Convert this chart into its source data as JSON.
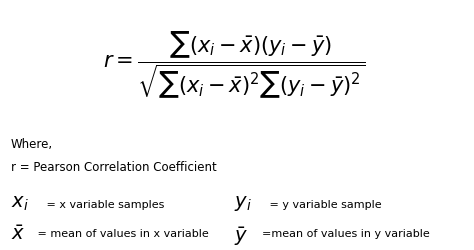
{
  "bg_color": "#ffffff",
  "text_color": "#000000",
  "fig_width": 4.74,
  "fig_height": 2.51,
  "formula_main": "$r = \\dfrac{\\sum (x_i - \\bar{x})(y_i - \\bar{y})}{\\sqrt{\\sum (x_i - \\bar{x})^2 \\sum (y_i - \\bar{y})^2}}$",
  "where_text": "Where,",
  "r_def": "r = Pearson Correlation Coefficient",
  "xi_formula": "$\\mathit{x}_i$",
  "xi_desc": " = x variable samples",
  "yi_formula": "$\\mathit{y}_i$",
  "yi_desc": " = y variable sample",
  "xbar_formula": "$\\bar{\\mathit{x}}$",
  "xbar_desc": " = mean of values in x variable",
  "ybar_formula": "$\\bar{\\mathit{y}}$",
  "ybar_desc": "=mean of values in y variable",
  "formula_fontsize": 15,
  "label_big_fontsize": 14,
  "label_small_fontsize": 8,
  "text_fontsize": 8.5
}
